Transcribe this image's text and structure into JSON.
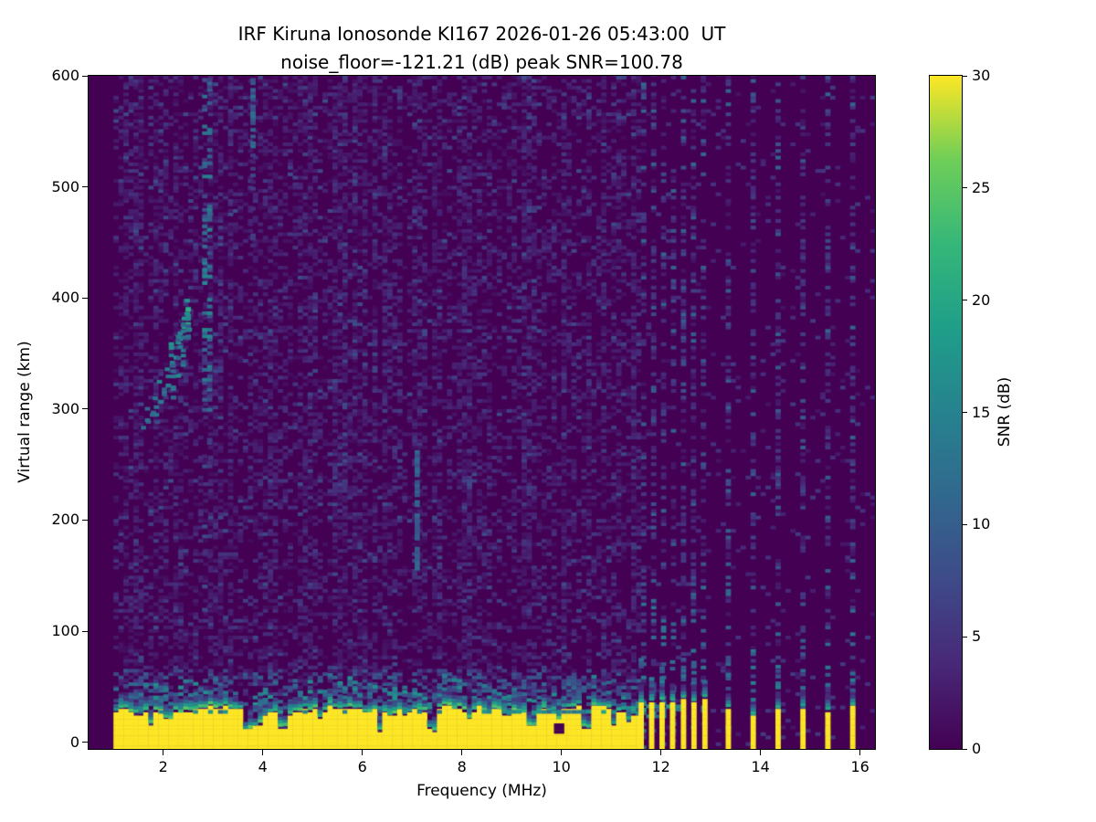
{
  "title_line1": "IRF Kiruna Ionosonde KI167 2026-01-26 05:43:00  UT",
  "title_line2": "noise_floor=-121.21 (dB) peak SNR=100.78",
  "chart_data": {
    "type": "heatmap",
    "title": "IRF Kiruna Ionosonde KI167 2026-01-26 05:43:00  UT",
    "subtitle": "noise_floor=-121.21 (dB) peak SNR=100.78",
    "station": "IRF Kiruna Ionosonde KI167",
    "timestamp_ut": "2026-01-26 05:43:00",
    "noise_floor_db": -121.21,
    "peak_snr_db": 100.78,
    "xlabel": "Frequency (MHz)",
    "ylabel": "Virtual range (km)",
    "xlim": [
      0.5,
      16.3
    ],
    "ylim": [
      -6,
      600
    ],
    "xticks": [
      2,
      4,
      6,
      8,
      10,
      12,
      14,
      16
    ],
    "xtick_labels": [
      "2",
      "4",
      "6",
      "8",
      "10",
      "12",
      "14",
      "16"
    ],
    "yticks": [
      0,
      100,
      200,
      300,
      400,
      500,
      600
    ],
    "ytick_labels": [
      "0",
      "100",
      "200",
      "300",
      "400",
      "500",
      "600"
    ],
    "colorbar": {
      "label": "SNR (dB)",
      "min": 0,
      "max": 30,
      "ticks": [
        0,
        5,
        10,
        15,
        20,
        25,
        30
      ],
      "tick_labels": [
        "0",
        "5",
        "10",
        "15",
        "20",
        "25",
        "30"
      ],
      "colormap": "viridis"
    },
    "colormap_stops": [
      "#440154",
      "#482878",
      "#3e4a89",
      "#31688e",
      "#26828e",
      "#1f9e89",
      "#35b779",
      "#6ece58",
      "#fde725"
    ],
    "seed": 20260126,
    "grid": {
      "f_step_mhz": 0.1,
      "range_step_km": 3
    },
    "background_noise": {
      "f_range": [
        1.0,
        11.5
      ],
      "density": 0.4,
      "snr_range_db": [
        1,
        8
      ]
    },
    "clean_region_noise_density": 0.045,
    "features": {
      "ground_echo": {
        "f_range": [
          1.0,
          11.5
        ],
        "top_km": 27,
        "snr_db": 30,
        "notches": [
          {
            "f": 1.7,
            "top_km": 14
          },
          {
            "f": 2.05,
            "top_km": 18
          },
          {
            "f": 3.65,
            "top_km": 8
          },
          {
            "f": 3.85,
            "top_km": 12
          },
          {
            "f": 4.35,
            "top_km": 10
          },
          {
            "f": 5.1,
            "top_km": 18
          },
          {
            "f": 6.3,
            "top_km": 7
          },
          {
            "f": 7.35,
            "top_km": 8
          },
          {
            "f": 8.1,
            "top_km": 17
          },
          {
            "f": 9.35,
            "top_km": 12
          },
          {
            "f": 9.9,
            "top_km": 16
          },
          {
            "f": 10.45,
            "top_km": 10
          },
          {
            "f": 11.0,
            "top_km": 13
          },
          {
            "f": 11.3,
            "top_km": 15
          }
        ]
      },
      "masked_bin": {
        "f": 9.85,
        "range_km": [
          8,
          14
        ],
        "snr_db": 0
      },
      "rfi_stripes": {
        "cluster_mhz": [
          11.55,
          11.76,
          11.97,
          12.18,
          12.4,
          12.61,
          12.83
        ],
        "isolated_mhz": [
          13.3,
          13.8,
          14.3,
          14.8,
          15.3,
          15.8
        ],
        "top_km_range": [
          22,
          40
        ],
        "snr_db": 30,
        "speckle_density": 0.4
      },
      "f_layer_trace": {
        "points_mhz_km": [
          [
            1.65,
            289
          ],
          [
            1.73,
            294
          ],
          [
            1.81,
            300
          ],
          [
            1.89,
            308
          ],
          [
            1.97,
            317
          ],
          [
            2.05,
            327
          ],
          [
            2.13,
            338
          ],
          [
            2.21,
            350
          ],
          [
            2.29,
            362
          ],
          [
            2.37,
            373
          ],
          [
            2.45,
            382
          ],
          [
            2.53,
            389
          ]
        ],
        "snr_db": [
          8,
          19
        ]
      },
      "spread_f_column": {
        "f_mhz": [
          2.78,
          2.9
        ],
        "range_km": [
          295,
          600
        ],
        "snr_db": [
          4,
          14
        ],
        "density": 0.42
      },
      "streak": {
        "f_mhz": 3.75,
        "range_km": [
          535,
          595
        ],
        "snr_db": [
          7,
          13
        ],
        "density": 0.75
      },
      "vertical_line": {
        "f_mhz": 7.05,
        "range_km": [
          155,
          265
        ],
        "snr_db": [
          8,
          12
        ],
        "density": 0.85
      }
    }
  }
}
